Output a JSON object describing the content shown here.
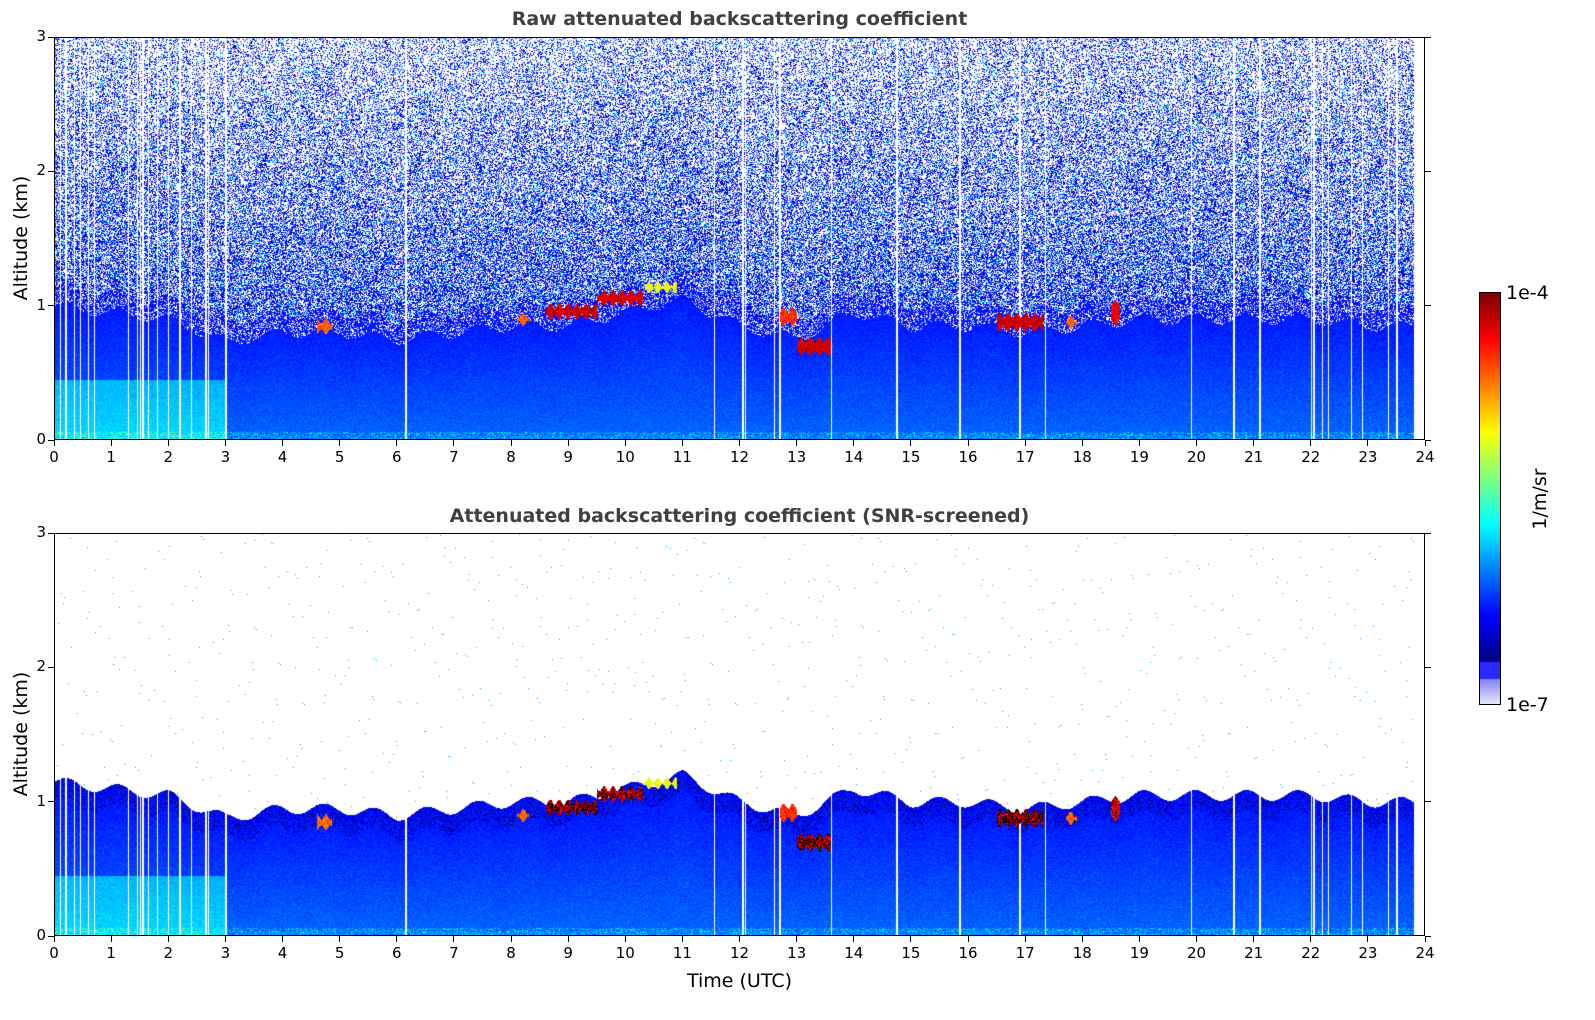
{
  "chart_data": [
    {
      "type": "heatmap",
      "title": "Raw attenuated backscattering coefficient",
      "xlabel": "",
      "ylabel": "Altitude (km)",
      "xlim": [
        0,
        24
      ],
      "ylim": [
        0,
        3
      ],
      "xticks": [
        "0",
        "1",
        "2",
        "3",
        "4",
        "5",
        "6",
        "7",
        "8",
        "9",
        "10",
        "11",
        "12",
        "13",
        "14",
        "15",
        "16",
        "17",
        "18",
        "19",
        "20",
        "21",
        "22",
        "23",
        "24"
      ],
      "yticks": [
        "0",
        "1",
        "2",
        "3"
      ],
      "screened": false
    },
    {
      "type": "heatmap",
      "title": "Attenuated backscattering coefficient (SNR-screened)",
      "xlabel": "Time (UTC)",
      "ylabel": "Altitude (km)",
      "xlim": [
        0,
        24
      ],
      "ylim": [
        0,
        3
      ],
      "xticks": [
        "0",
        "1",
        "2",
        "3",
        "4",
        "5",
        "6",
        "7",
        "8",
        "9",
        "10",
        "11",
        "12",
        "13",
        "14",
        "15",
        "16",
        "17",
        "18",
        "19",
        "20",
        "21",
        "22",
        "23",
        "24"
      ],
      "yticks": [
        "0",
        "1",
        "2",
        "3"
      ],
      "screened": true
    }
  ],
  "field": {
    "boundary_layer_top_km": [
      1.15,
      1.1,
      1.05,
      0.88,
      0.95,
      0.95,
      0.9,
      0.95,
      1.0,
      1.0,
      1.1,
      1.2,
      1.0,
      0.9,
      1.1,
      1.0,
      1.0,
      0.95,
      1.0,
      1.05,
      1.05,
      1.05,
      1.05,
      1.0,
      1.0
    ],
    "clouds": [
      {
        "t0": 4.6,
        "t1": 4.85,
        "alt": 0.85,
        "thick": 0.08,
        "level": 0.85
      },
      {
        "t0": 8.1,
        "t1": 8.3,
        "alt": 0.9,
        "thick": 0.06,
        "level": 0.85
      },
      {
        "t0": 8.6,
        "t1": 9.5,
        "alt": 0.96,
        "thick": 0.08,
        "level": 0.98
      },
      {
        "t0": 9.5,
        "t1": 10.3,
        "alt": 1.06,
        "thick": 0.08,
        "level": 0.97
      },
      {
        "t0": 10.3,
        "t1": 10.9,
        "alt": 1.14,
        "thick": 0.05,
        "level": 0.7
      },
      {
        "t0": 12.7,
        "t1": 13.0,
        "alt": 0.92,
        "thick": 0.1,
        "level": 0.9
      },
      {
        "t0": 13.0,
        "t1": 13.6,
        "alt": 0.7,
        "thick": 0.1,
        "level": 0.98
      },
      {
        "t0": 16.5,
        "t1": 17.3,
        "alt": 0.88,
        "thick": 0.1,
        "level": 0.98
      },
      {
        "t0": 17.7,
        "t1": 17.9,
        "alt": 0.88,
        "thick": 0.06,
        "level": 0.85
      },
      {
        "t0": 18.5,
        "t1": 18.65,
        "alt": 0.95,
        "thick": 0.15,
        "level": 0.95
      }
    ],
    "data_gaps_utc": [
      0.1,
      0.2,
      0.35,
      0.45,
      0.6,
      0.7,
      1.3,
      1.45,
      1.5,
      1.55,
      1.65,
      1.8,
      2.0,
      2.2,
      2.4,
      2.65,
      2.7,
      3.0,
      6.15,
      11.55,
      12.05,
      12.1,
      12.6,
      12.7,
      13.6,
      14.75,
      15.85,
      16.9,
      17.35,
      19.9,
      20.65,
      21.1,
      22.0,
      22.05,
      22.2,
      22.3,
      22.7,
      22.9,
      23.35,
      23.5
    ],
    "data_end_utc": 23.8
  },
  "colorbar": {
    "max_label": "1e-4",
    "min_label": "1e-7",
    "unit_label": "1/m/sr",
    "range": [
      1e-07,
      0.0001
    ],
    "scale": "log"
  }
}
